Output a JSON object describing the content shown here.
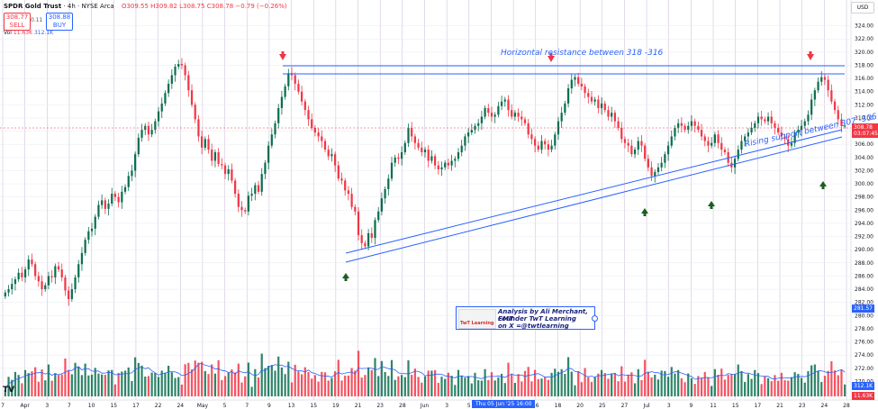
{
  "header": {
    "symbol": "SPDR Gold Trust",
    "timeframe": "4h",
    "exchange": "NYSE Arca",
    "ohlc": "O309.55 H309.82 L308.75 C308.78 −0.79 (−0.26%)",
    "sell_price": "308.77",
    "sell_label": "SELL",
    "spread": "0.11",
    "buy_price": "308.88",
    "buy_label": "BUY",
    "vol_label": "Vol",
    "vol_value": "11.63K",
    "vol_ma": "312.1K"
  },
  "currency": "USD",
  "price_tags": {
    "last": "308.78",
    "countdown": "03:07:45",
    "level_281": "281.57",
    "vol_ma_tag": "312.1K",
    "vol_tag": "11.63K"
  },
  "annotations": {
    "resistance": "Horizontal resistance between 318 -316",
    "support": "Rising support between 307 -306"
  },
  "credit": {
    "logo_text": "TwT Learning",
    "line1": "Analysis by Ali Merchant, CMT",
    "line2": "Founder TwT Learning",
    "line3": "on X =@twtlearning"
  },
  "crosshair_date": "Thu 05 Jun '25   16:00",
  "tv_logo": "TV",
  "colors": {
    "up": "#0b6e4f",
    "down": "#f23645",
    "trend": "#2962ff",
    "arrow_down": "#f23645",
    "arrow_up": "#1b5e20"
  },
  "chart_data": {
    "type": "candlestick",
    "y_axis": {
      "min": 268,
      "max": 326,
      "ticks": [
        324,
        322,
        320,
        318,
        316,
        314,
        312,
        310,
        308,
        306,
        304,
        302,
        300,
        298,
        296,
        294,
        292,
        290,
        288,
        286,
        284,
        282,
        280,
        278,
        276,
        274,
        272,
        270
      ]
    },
    "x_labels": [
      "7",
      "Apr",
      "3",
      "7",
      "10",
      "15",
      "17",
      "22",
      "24",
      "May",
      "5",
      "7",
      "9",
      "13",
      "15",
      "19",
      "21",
      "23",
      "28",
      "Jun",
      "3",
      "5",
      "10",
      "12",
      "16",
      "18",
      "20",
      "25",
      "27",
      "Jul",
      "3",
      "9",
      "11",
      "15",
      "17",
      "21",
      "23",
      "24",
      "28"
    ],
    "closes": [
      283.5,
      284,
      284.8,
      285.5,
      286.5,
      285.8,
      287,
      288.5,
      287.8,
      286,
      285.2,
      284,
      284.6,
      286,
      285.8,
      287.5,
      287,
      285.8,
      283.8,
      282.5,
      284,
      285.8,
      287.8,
      289.5,
      291.5,
      292.8,
      293.2,
      295,
      296.8,
      297.5,
      296.2,
      297,
      298.5,
      298,
      297.2,
      298.8,
      299.5,
      301.2,
      302,
      304.5,
      307,
      308.2,
      308.8,
      307.5,
      308.2,
      309.5,
      311,
      312.2,
      313.8,
      315.2,
      316.5,
      317.8,
      318.2,
      318,
      316.5,
      314.2,
      312,
      309.8,
      307.2,
      305.5,
      306.8,
      305.2,
      303.5,
      304.8,
      303,
      302.8,
      301.5,
      302.2,
      300.5,
      298.5,
      296.5,
      296,
      295.8,
      298.2,
      298.5,
      299.8,
      298.8,
      301.5,
      303.2,
      305.8,
      307.5,
      309.2,
      311.5,
      313.2,
      314.8,
      316.8,
      316.5,
      315.2,
      314,
      312.5,
      311.2,
      309.8,
      308.5,
      307.8,
      307.2,
      306.5,
      305.2,
      304.2,
      304.5,
      302.8,
      300.8,
      300.5,
      299,
      298.5,
      296.5,
      295.8,
      292.2,
      291,
      290.5,
      292.5,
      291.8,
      294.5,
      295.8,
      297.8,
      299.2,
      300.8,
      303.2,
      304,
      303.8,
      304.8,
      306.2,
      308.5,
      307.2,
      306.2,
      305.5,
      304.8,
      305.2,
      303.5,
      304.2,
      302.8,
      302.2,
      302.5,
      303.2,
      302.8,
      303.5,
      303.8,
      304.8,
      305.8,
      307.2,
      307.8,
      308.2,
      308.8,
      309.2,
      310.2,
      311.5,
      310.8,
      310.2,
      310.5,
      311.8,
      312.5,
      312.8,
      311.2,
      310.2,
      310.8,
      310.2,
      309.8,
      309.2,
      307.5,
      306.8,
      305.8,
      305.2,
      306.5,
      306,
      305.2,
      305.8,
      307.5,
      309.5,
      310.8,
      312.2,
      314.5,
      315.8,
      316.2,
      315.2,
      314.8,
      313.8,
      313.2,
      312.5,
      312.8,
      311.5,
      312.2,
      311.2,
      310.2,
      310.8,
      309.5,
      308.5,
      306.8,
      306.2,
      305.8,
      304.5,
      305.2,
      306.5,
      305.8,
      303.8,
      302.5,
      301.2,
      301.8,
      302.5,
      303.2,
      304.5,
      305.8,
      307.2,
      308.5,
      309.2,
      308.8,
      308.2,
      308.8,
      309.5,
      308.8,
      308.2,
      307.2,
      306.5,
      305.8,
      306.2,
      307.5,
      306.2,
      305.2,
      304.8,
      303.2,
      302.5,
      303.8,
      305.2,
      306.5,
      307.2,
      307.8,
      308.5,
      309.2,
      310.2,
      309.8,
      309.5,
      310.2,
      309.2,
      308.5,
      307.8,
      307.2,
      306.8,
      305.8,
      306.2,
      307.8,
      308.2,
      308.8,
      309.5,
      310.5,
      312.8,
      314.2,
      315.5,
      316.2,
      315.8,
      314.2,
      312.5,
      311.2,
      309.8,
      308.8,
      308.8
    ]
  }
}
